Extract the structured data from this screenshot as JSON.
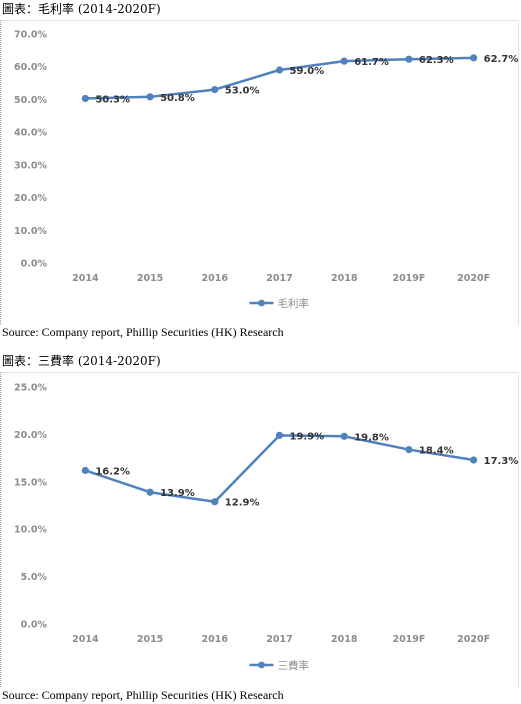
{
  "charts": [
    {
      "title": "圖表：毛利率 (2014-2020F)",
      "source": "Source: Company report, Phillip Securities (HK) Research",
      "legend": "毛利率",
      "color": "#4f81bd",
      "y_labels": [
        "0.0%",
        "10.0%",
        "20.0%",
        "30.0%",
        "40.0%",
        "50.0%",
        "60.0%",
        "70.0%"
      ],
      "categories": [
        "2014",
        "2015",
        "2016",
        "2017",
        "2018",
        "2019F",
        "2020F"
      ],
      "data_labels": [
        "50.3%",
        "50.8%",
        "53.0%",
        "59.0%",
        "61.7%",
        "62.3%",
        "62.7%"
      ]
    },
    {
      "title": "圖表：三費率 (2014-2020F)",
      "source": "Source: Company report, Phillip Securities (HK) Research",
      "legend": "三費率",
      "color": "#4f81bd",
      "y_labels": [
        "0.0%",
        "5.0%",
        "10.0%",
        "15.0%",
        "20.0%",
        "25.0%"
      ],
      "categories": [
        "2014",
        "2015",
        "2016",
        "2017",
        "2018",
        "2019F",
        "2020F"
      ],
      "data_labels": [
        "16.2%",
        "13.9%",
        "12.9%",
        "19.9%",
        "19.8%",
        "18.4%",
        "17.3%"
      ]
    }
  ],
  "chart_data": [
    {
      "type": "line",
      "title": "圖表：毛利率 (2014-2020F)",
      "x": [
        "2014",
        "2015",
        "2016",
        "2017",
        "2018",
        "2019F",
        "2020F"
      ],
      "series": [
        {
          "name": "毛利率",
          "values": [
            50.3,
            50.8,
            53.0,
            59.0,
            61.7,
            62.3,
            62.7
          ]
        }
      ],
      "xlabel": "",
      "ylabel": "",
      "ylim": [
        0,
        70
      ],
      "ytick_step": 10,
      "grid": false,
      "legend_position": "bottom"
    },
    {
      "type": "line",
      "title": "圖表：三費率 (2014-2020F)",
      "x": [
        "2014",
        "2015",
        "2016",
        "2017",
        "2018",
        "2019F",
        "2020F"
      ],
      "series": [
        {
          "name": "三費率",
          "values": [
            16.2,
            13.9,
            12.9,
            19.9,
            19.8,
            18.4,
            17.3
          ]
        }
      ],
      "xlabel": "",
      "ylabel": "",
      "ylim": [
        0,
        25
      ],
      "ytick_step": 5,
      "grid": false,
      "legend_position": "bottom"
    }
  ]
}
